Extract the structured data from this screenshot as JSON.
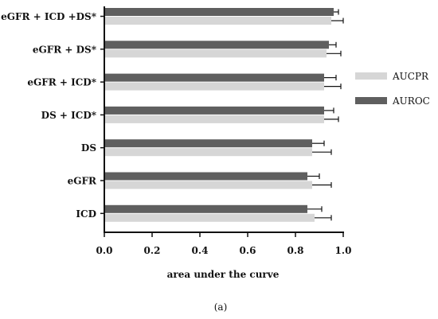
{
  "chart_data": {
    "type": "bar",
    "orientation": "horizontal",
    "title": "",
    "xlabel": "area under the curve",
    "ylabel": "",
    "xlim": [
      0.0,
      1.0
    ],
    "xticks": [
      "0.0",
      "0.2",
      "0.4",
      "0.6",
      "0.8",
      "1.0"
    ],
    "categories": [
      "eGFR + ICD +DS*",
      "eGFR + DS*",
      "eGFR + ICD*",
      "DS + ICD*",
      "DS",
      "eGFR",
      "ICD"
    ],
    "series": [
      {
        "name": "AUROC",
        "color": "#5f5f5f",
        "values": [
          0.96,
          0.94,
          0.92,
          0.92,
          0.87,
          0.85,
          0.85
        ],
        "error": [
          0.02,
          0.03,
          0.05,
          0.04,
          0.05,
          0.05,
          0.06
        ]
      },
      {
        "name": "AUCPR",
        "color": "#d6d6d6",
        "values": [
          0.95,
          0.93,
          0.92,
          0.92,
          0.87,
          0.87,
          0.88
        ],
        "error": [
          0.05,
          0.06,
          0.07,
          0.06,
          0.08,
          0.08,
          0.07
        ]
      }
    ],
    "legend": {
      "position": "right",
      "order": [
        "AUCPR",
        "AUROC"
      ]
    },
    "grid": false
  },
  "caption": "(a)"
}
